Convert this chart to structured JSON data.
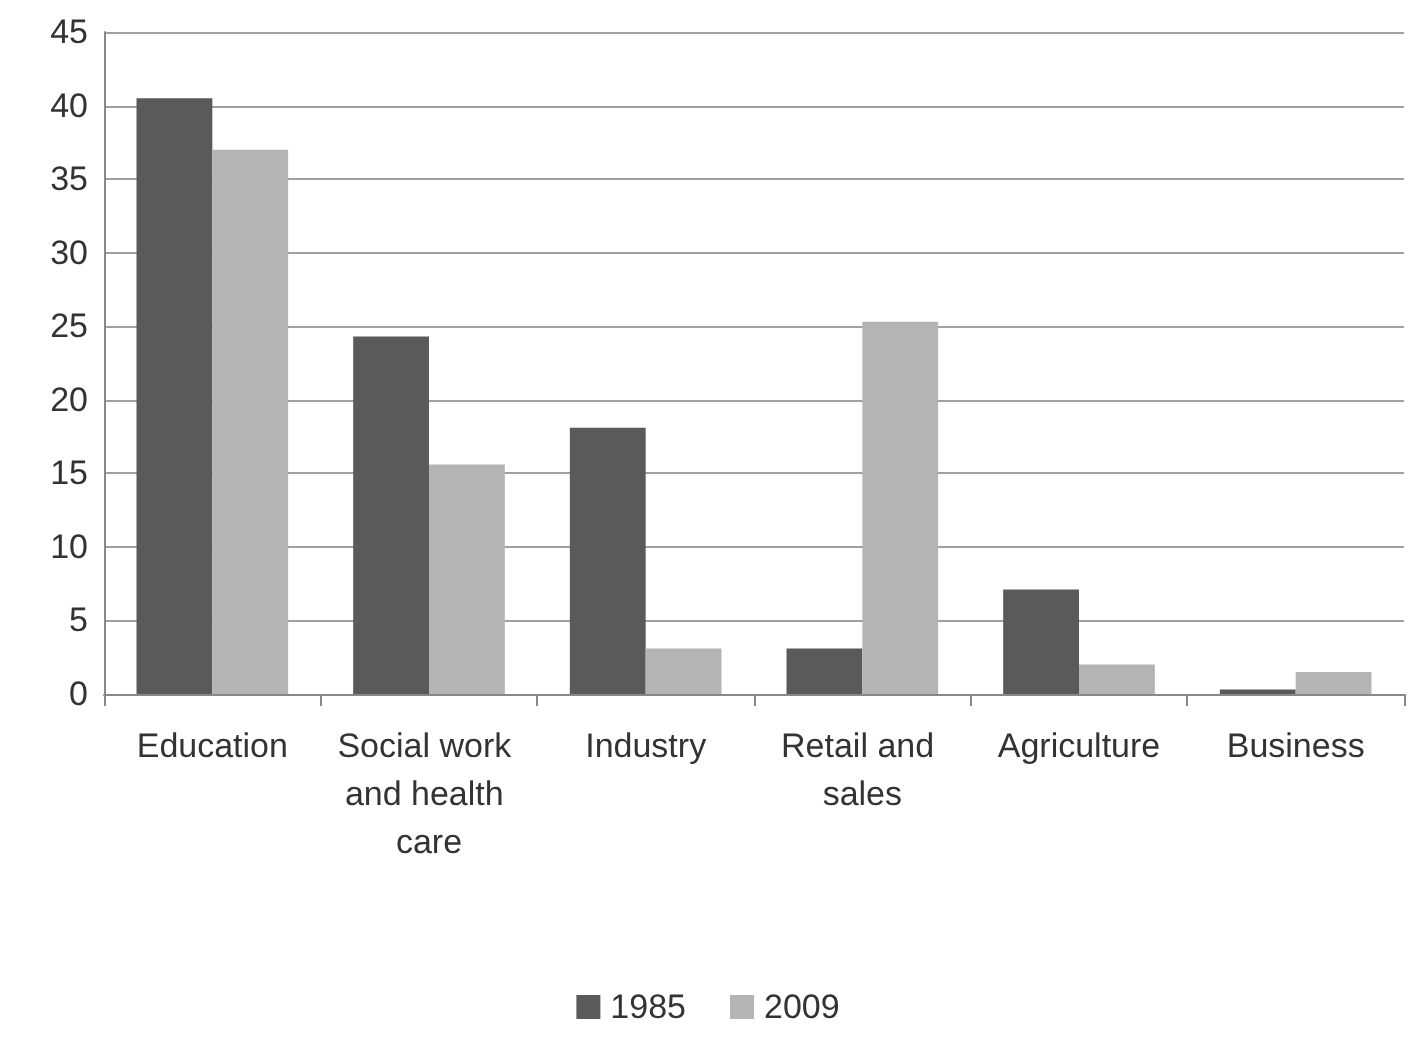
{
  "chart_data": {
    "type": "bar",
    "categories": [
      "Education",
      "Social work and health care",
      "Industry",
      "Retail and sales",
      "Agriculture",
      "Business"
    ],
    "series": [
      {
        "name": "1985",
        "color": "#5a5a5a",
        "values": [
          40.5,
          24.3,
          18.1,
          3.1,
          7.1,
          0.3
        ]
      },
      {
        "name": "2009",
        "color": "#b4b4b4",
        "values": [
          37.0,
          15.6,
          3.1,
          25.3,
          2.0,
          1.5
        ]
      }
    ],
    "ylim": [
      0,
      45
    ],
    "yticks": [
      0,
      5,
      10,
      15,
      20,
      25,
      30,
      35,
      40,
      45
    ],
    "grid": "y",
    "legend": "bottom"
  }
}
